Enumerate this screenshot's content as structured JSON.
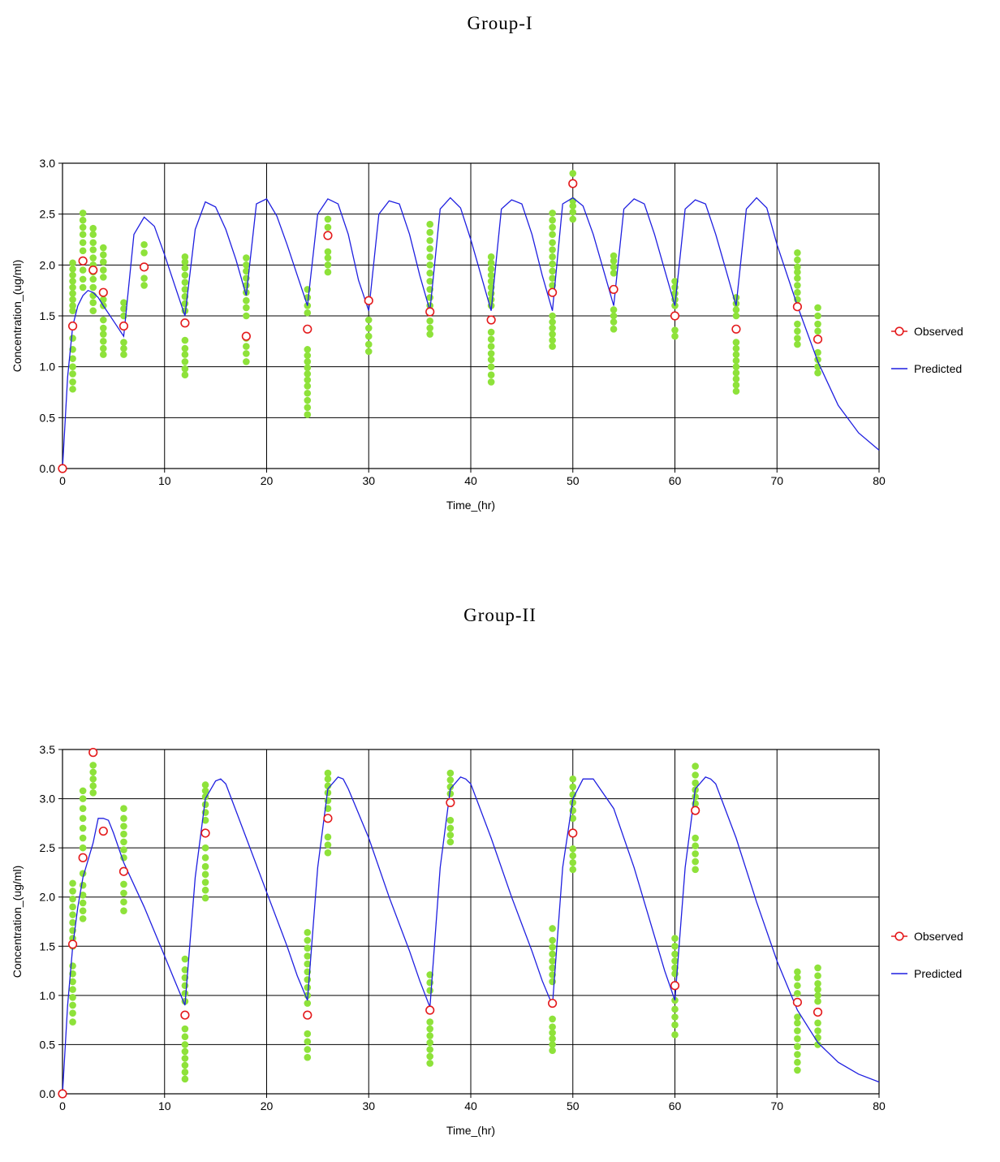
{
  "chart_data": [
    {
      "type": "scatter",
      "title": "Group-I",
      "xlabel": "Time_(hr)",
      "ylabel": "Concentration_(ug/ml)",
      "xlim": [
        0,
        80
      ],
      "ylim": [
        0,
        3.0
      ],
      "xticks": [
        0,
        10,
        20,
        30,
        40,
        50,
        60,
        70,
        80
      ],
      "yticks": [
        "0.0",
        "0.5",
        "1.0",
        "1.5",
        "2.0",
        "2.5",
        "3.0"
      ],
      "grid": true,
      "legend": {
        "placement": "right",
        "entries": [
          "Observed",
          "Predicted"
        ]
      },
      "colors": {
        "observed": "#e41a1c",
        "predicted": "#1f1fe0",
        "individual": "#8ee23a"
      },
      "observed": {
        "x": [
          0,
          1,
          2,
          3,
          4,
          6,
          8,
          12,
          18,
          24,
          26,
          30,
          36,
          42,
          48,
          50,
          54,
          60,
          66,
          72,
          74
        ],
        "y": [
          0,
          1.4,
          2.04,
          1.95,
          1.73,
          1.4,
          1.98,
          1.43,
          1.3,
          1.37,
          2.29,
          1.65,
          1.54,
          1.46,
          1.73,
          2.8,
          1.76,
          1.5,
          1.37,
          1.59,
          1.27
        ]
      },
      "predicted": {
        "x": [
          0,
          0.5,
          1,
          1.5,
          2,
          2.5,
          3,
          3.5,
          4,
          5,
          6,
          7,
          8,
          9,
          10,
          11,
          12,
          13,
          14,
          15,
          16,
          17,
          18,
          19,
          20,
          21,
          22,
          23,
          24,
          25,
          26,
          27,
          28,
          29,
          30,
          31,
          32,
          33,
          34,
          35,
          36,
          37,
          38,
          39,
          40,
          41,
          42,
          43,
          44,
          45,
          46,
          47,
          48,
          49,
          50,
          51,
          52,
          53,
          54,
          55,
          56,
          57,
          58,
          59,
          60,
          61,
          62,
          63,
          64,
          65,
          66,
          67,
          68,
          69,
          70,
          72,
          74,
          76,
          78,
          80
        ],
        "y": [
          0,
          0.9,
          1.4,
          1.6,
          1.7,
          1.75,
          1.73,
          1.68,
          1.6,
          1.45,
          1.3,
          2.3,
          2.47,
          2.38,
          2.1,
          1.8,
          1.5,
          2.35,
          2.62,
          2.57,
          2.35,
          2.05,
          1.7,
          2.6,
          2.65,
          2.48,
          2.2,
          1.9,
          1.6,
          2.5,
          2.65,
          2.6,
          2.3,
          1.85,
          1.55,
          2.5,
          2.63,
          2.6,
          2.3,
          1.9,
          1.55,
          2.55,
          2.66,
          2.56,
          2.25,
          1.9,
          1.55,
          2.55,
          2.64,
          2.6,
          2.3,
          1.9,
          1.55,
          2.6,
          2.66,
          2.58,
          2.3,
          1.95,
          1.6,
          2.55,
          2.65,
          2.6,
          2.3,
          1.95,
          1.6,
          2.55,
          2.64,
          2.6,
          2.3,
          1.95,
          1.6,
          2.55,
          2.66,
          2.56,
          2.2,
          1.6,
          1.05,
          0.62,
          0.35,
          0.18
        ]
      },
      "individual": {
        "x": [
          1,
          2,
          3,
          4,
          6,
          8,
          12,
          18,
          24,
          26,
          30,
          36,
          42,
          48,
          50,
          54,
          60,
          66,
          72,
          74
        ],
        "y": [
          [
            0.78,
            0.85,
            0.93,
            1.0,
            1.08,
            1.17,
            1.28,
            1.55,
            1.6,
            1.66,
            1.72,
            1.78,
            1.84,
            1.9,
            1.96,
            2.02
          ],
          [
            1.78,
            1.86,
            1.95,
            2.05,
            2.14,
            2.22,
            2.3,
            2.37,
            2.44,
            2.51
          ],
          [
            1.55,
            1.63,
            1.7,
            1.78,
            1.86,
            1.93,
            2.0,
            2.07,
            2.15,
            2.22,
            2.3,
            2.36
          ],
          [
            1.12,
            1.18,
            1.25,
            1.32,
            1.38,
            1.46,
            1.6,
            1.66,
            1.73,
            1.88,
            1.95,
            2.03,
            2.1,
            2.17
          ],
          [
            1.12,
            1.18,
            1.24,
            1.5,
            1.57,
            1.63
          ],
          [
            1.8,
            1.87,
            2.12,
            2.2
          ],
          [
            0.92,
            0.98,
            1.05,
            1.12,
            1.18,
            1.26,
            1.55,
            1.62,
            1.69,
            1.76,
            1.83,
            1.9,
            1.97,
            2.03,
            2.08
          ],
          [
            1.05,
            1.13,
            1.2,
            1.28,
            1.5,
            1.58,
            1.65,
            1.73,
            1.8,
            1.87,
            1.94,
            2.0,
            2.07
          ],
          [
            0.53,
            0.6,
            0.67,
            0.74,
            0.81,
            0.87,
            0.93,
            0.99,
            1.05,
            1.11,
            1.17,
            1.53,
            1.6,
            1.68,
            1.76
          ],
          [
            1.93,
            2.0,
            2.07,
            2.13,
            2.37,
            2.45
          ],
          [
            1.15,
            1.22,
            1.3,
            1.38,
            1.46
          ],
          [
            1.32,
            1.38,
            1.45,
            1.6,
            1.68,
            1.76,
            1.84,
            1.92,
            2.0,
            2.08,
            2.16,
            2.24,
            2.32,
            2.4
          ],
          [
            0.85,
            0.92,
            1.0,
            1.07,
            1.13,
            1.2,
            1.27,
            1.34,
            1.6,
            1.66,
            1.72,
            1.78,
            1.84,
            1.9,
            1.96,
            2.02,
            2.08
          ],
          [
            1.2,
            1.26,
            1.32,
            1.38,
            1.44,
            1.5,
            1.8,
            1.87,
            1.94,
            2.01,
            2.08,
            2.15,
            2.22,
            2.3,
            2.37,
            2.44,
            2.51
          ],
          [
            2.45,
            2.52,
            2.58,
            2.63,
            2.9
          ],
          [
            1.37,
            1.44,
            1.5,
            1.56,
            1.92,
            1.98,
            2.04,
            2.09
          ],
          [
            1.3,
            1.36,
            1.6,
            1.66,
            1.72,
            1.78,
            1.84
          ],
          [
            0.76,
            0.82,
            0.88,
            0.94,
            1.0,
            1.06,
            1.12,
            1.18,
            1.24,
            1.5,
            1.56,
            1.62,
            1.68
          ],
          [
            1.22,
            1.28,
            1.35,
            1.42,
            1.66,
            1.73,
            1.8,
            1.87,
            1.93,
            1.98,
            2.05,
            2.12
          ],
          [
            0.94,
            1.0,
            1.07,
            1.14,
            1.35,
            1.42,
            1.5,
            1.58
          ]
        ]
      }
    },
    {
      "type": "scatter",
      "title": "Group-II",
      "xlabel": "Time_(hr)",
      "ylabel": "Concentration_(ug/ml)",
      "xlim": [
        0,
        80
      ],
      "ylim": [
        0,
        3.5
      ],
      "xticks": [
        0,
        10,
        20,
        30,
        40,
        50,
        60,
        70,
        80
      ],
      "yticks": [
        "0.0",
        "0.5",
        "1.0",
        "1.5",
        "2.0",
        "2.5",
        "3.0",
        "3.5"
      ],
      "grid": true,
      "legend": {
        "placement": "right",
        "entries": [
          "Observed",
          "Predicted"
        ]
      },
      "colors": {
        "observed": "#e41a1c",
        "predicted": "#1f1fe0",
        "individual": "#8ee23a"
      },
      "observed": {
        "x": [
          0,
          1,
          2,
          3,
          4,
          6,
          12,
          14,
          24,
          26,
          36,
          38,
          48,
          50,
          60,
          62,
          72,
          74
        ],
        "y": [
          0,
          1.52,
          2.4,
          3.47,
          2.67,
          2.26,
          0.8,
          2.65,
          0.8,
          2.8,
          0.85,
          2.96,
          0.92,
          2.65,
          1.1,
          2.88,
          0.93,
          0.83
        ]
      },
      "predicted": {
        "x": [
          0,
          0.5,
          1,
          1.5,
          2,
          3,
          3.5,
          4,
          4.5,
          5,
          6,
          8,
          10,
          11,
          12,
          13,
          14,
          15,
          15.5,
          16,
          18,
          20,
          22,
          23,
          24,
          25,
          26,
          27,
          27.5,
          28,
          30,
          32,
          34,
          35,
          36,
          37,
          38,
          39,
          39.5,
          40,
          42,
          44,
          46,
          47,
          48,
          49,
          50,
          51,
          52,
          54,
          56,
          58,
          59,
          60,
          61,
          62,
          63,
          63.5,
          64,
          66,
          68,
          70,
          72,
          74,
          76,
          78,
          80
        ],
        "y": [
          0,
          0.9,
          1.5,
          1.9,
          2.2,
          2.55,
          2.8,
          2.8,
          2.78,
          2.65,
          2.35,
          1.9,
          1.4,
          1.15,
          0.9,
          2.2,
          3.0,
          3.18,
          3.2,
          3.15,
          2.6,
          2.05,
          1.5,
          1.2,
          0.95,
          2.3,
          3.1,
          3.22,
          3.2,
          3.1,
          2.6,
          2.0,
          1.45,
          1.15,
          0.88,
          2.3,
          3.1,
          3.22,
          3.2,
          3.15,
          2.6,
          2.0,
          1.45,
          1.15,
          0.9,
          2.3,
          3.0,
          3.2,
          3.2,
          2.9,
          2.3,
          1.6,
          1.25,
          0.95,
          2.3,
          3.1,
          3.22,
          3.2,
          3.15,
          2.6,
          1.95,
          1.35,
          0.85,
          0.52,
          0.32,
          0.2,
          0.12
        ]
      },
      "individual": {
        "x": [
          1,
          2,
          3,
          6,
          12,
          14,
          24,
          26,
          36,
          38,
          48,
          50,
          60,
          62,
          72,
          74
        ],
        "y": [
          [
            0.73,
            0.82,
            0.9,
            0.98,
            1.06,
            1.14,
            1.22,
            1.3,
            1.5,
            1.58,
            1.66,
            1.74,
            1.82,
            1.9,
            1.98,
            2.06,
            2.14
          ],
          [
            1.78,
            1.86,
            1.94,
            2.02,
            2.12,
            2.24,
            2.5,
            2.6,
            2.7,
            2.8,
            2.9,
            3.0,
            3.08
          ],
          [
            3.06,
            3.13,
            3.2,
            3.27,
            3.34
          ],
          [
            1.86,
            1.95,
            2.04,
            2.13,
            2.4,
            2.48,
            2.56,
            2.64,
            2.72,
            2.8,
            2.9
          ],
          [
            0.15,
            0.22,
            0.29,
            0.36,
            0.43,
            0.5,
            0.58,
            0.66,
            0.94,
            1.02,
            1.1,
            1.18,
            1.26,
            1.37
          ],
          [
            1.99,
            2.07,
            2.15,
            2.23,
            2.31,
            2.4,
            2.5,
            2.78,
            2.86,
            2.94,
            3.02,
            3.08,
            3.14
          ],
          [
            0.37,
            0.45,
            0.53,
            0.61,
            0.92,
            1.0,
            1.08,
            1.16,
            1.24,
            1.32,
            1.4,
            1.48,
            1.56,
            1.64
          ],
          [
            2.45,
            2.53,
            2.61,
            2.9,
            2.98,
            3.06,
            3.13,
            3.2,
            3.26
          ],
          [
            0.31,
            0.38,
            0.45,
            0.52,
            0.59,
            0.66,
            0.73,
            1.05,
            1.13,
            1.21
          ],
          [
            2.56,
            2.63,
            2.7,
            2.78,
            3.05,
            3.12,
            3.19,
            3.26
          ],
          [
            0.44,
            0.5,
            0.56,
            0.62,
            0.68,
            0.76,
            1.14,
            1.21,
            1.28,
            1.35,
            1.42,
            1.49,
            1.56,
            1.68
          ],
          [
            2.28,
            2.35,
            2.42,
            2.49,
            2.8,
            2.88,
            2.96,
            3.04,
            3.12,
            3.2
          ],
          [
            0.6,
            0.7,
            0.78,
            0.86,
            0.95,
            1.22,
            1.28,
            1.35,
            1.42,
            1.5,
            1.58
          ],
          [
            2.28,
            2.36,
            2.44,
            2.52,
            2.6,
            2.95,
            3.02,
            3.09,
            3.16,
            3.24,
            3.33
          ],
          [
            0.24,
            0.32,
            0.4,
            0.48,
            0.56,
            0.64,
            0.72,
            0.78,
            1.02,
            1.1,
            1.18,
            1.24
          ],
          [
            0.5,
            0.57,
            0.64,
            0.72,
            0.94,
            1.0,
            1.06,
            1.12,
            1.2,
            1.28
          ]
        ]
      }
    }
  ]
}
